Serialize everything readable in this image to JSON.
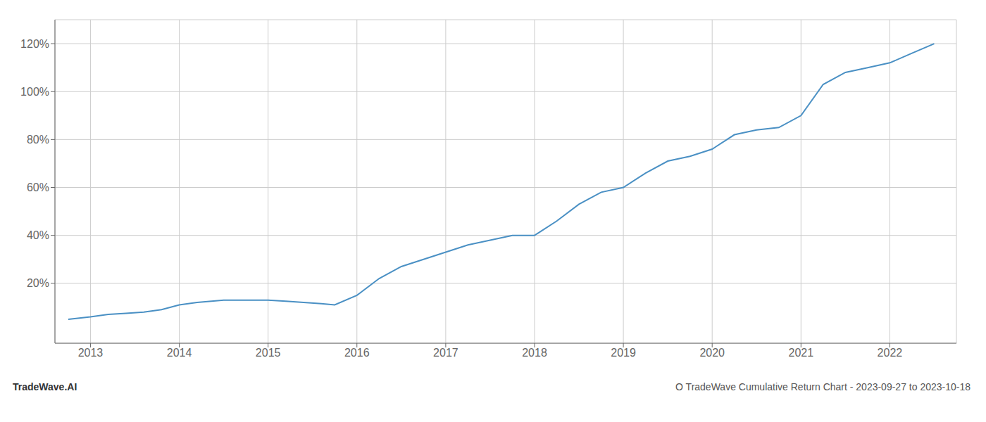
{
  "chart_data": {
    "type": "line",
    "title": "O TradeWave Cumulative Return Chart - 2023-09-27 to 2023-10-18",
    "annotations": [
      "TradeWave.AI"
    ],
    "color": "#4a90c4",
    "grid": true,
    "x": [
      2012.75,
      2013.0,
      2013.1,
      2013.2,
      2013.4,
      2013.6,
      2013.8,
      2014.0,
      2014.2,
      2014.5,
      2014.8,
      2015.0,
      2015.2,
      2015.4,
      2015.6,
      2015.75,
      2016.0,
      2016.25,
      2016.5,
      2016.75,
      2017.0,
      2017.25,
      2017.5,
      2017.75,
      2018.0,
      2018.25,
      2018.5,
      2018.75,
      2019.0,
      2019.25,
      2019.5,
      2019.75,
      2020.0,
      2020.25,
      2020.5,
      2020.75,
      2021.0,
      2021.25,
      2021.5,
      2021.75,
      2022.0,
      2022.25,
      2022.5
    ],
    "values": [
      5,
      6,
      6.5,
      7,
      7.5,
      8,
      9,
      11,
      12,
      13,
      13,
      13,
      12.5,
      12,
      11.5,
      11,
      15,
      22,
      27,
      30,
      33,
      36,
      38,
      40,
      40,
      46,
      53,
      58,
      60,
      66,
      71,
      73,
      76,
      82,
      84,
      85,
      90,
      103,
      108,
      110,
      112,
      116,
      120
    ],
    "xlim": [
      2012.6,
      2022.75
    ],
    "xticks": [
      2013,
      2014,
      2015,
      2016,
      2017,
      2018,
      2019,
      2020,
      2021,
      2022
    ],
    "ylim": [
      -5,
      130
    ],
    "yticks": [
      {
        "value": 20,
        "label": "20%"
      },
      {
        "value": 40,
        "label": "40%"
      },
      {
        "value": 60,
        "label": "60%"
      },
      {
        "value": 80,
        "label": "80%"
      },
      {
        "value": 100,
        "label": "100%"
      },
      {
        "value": 120,
        "label": "120%"
      }
    ]
  }
}
